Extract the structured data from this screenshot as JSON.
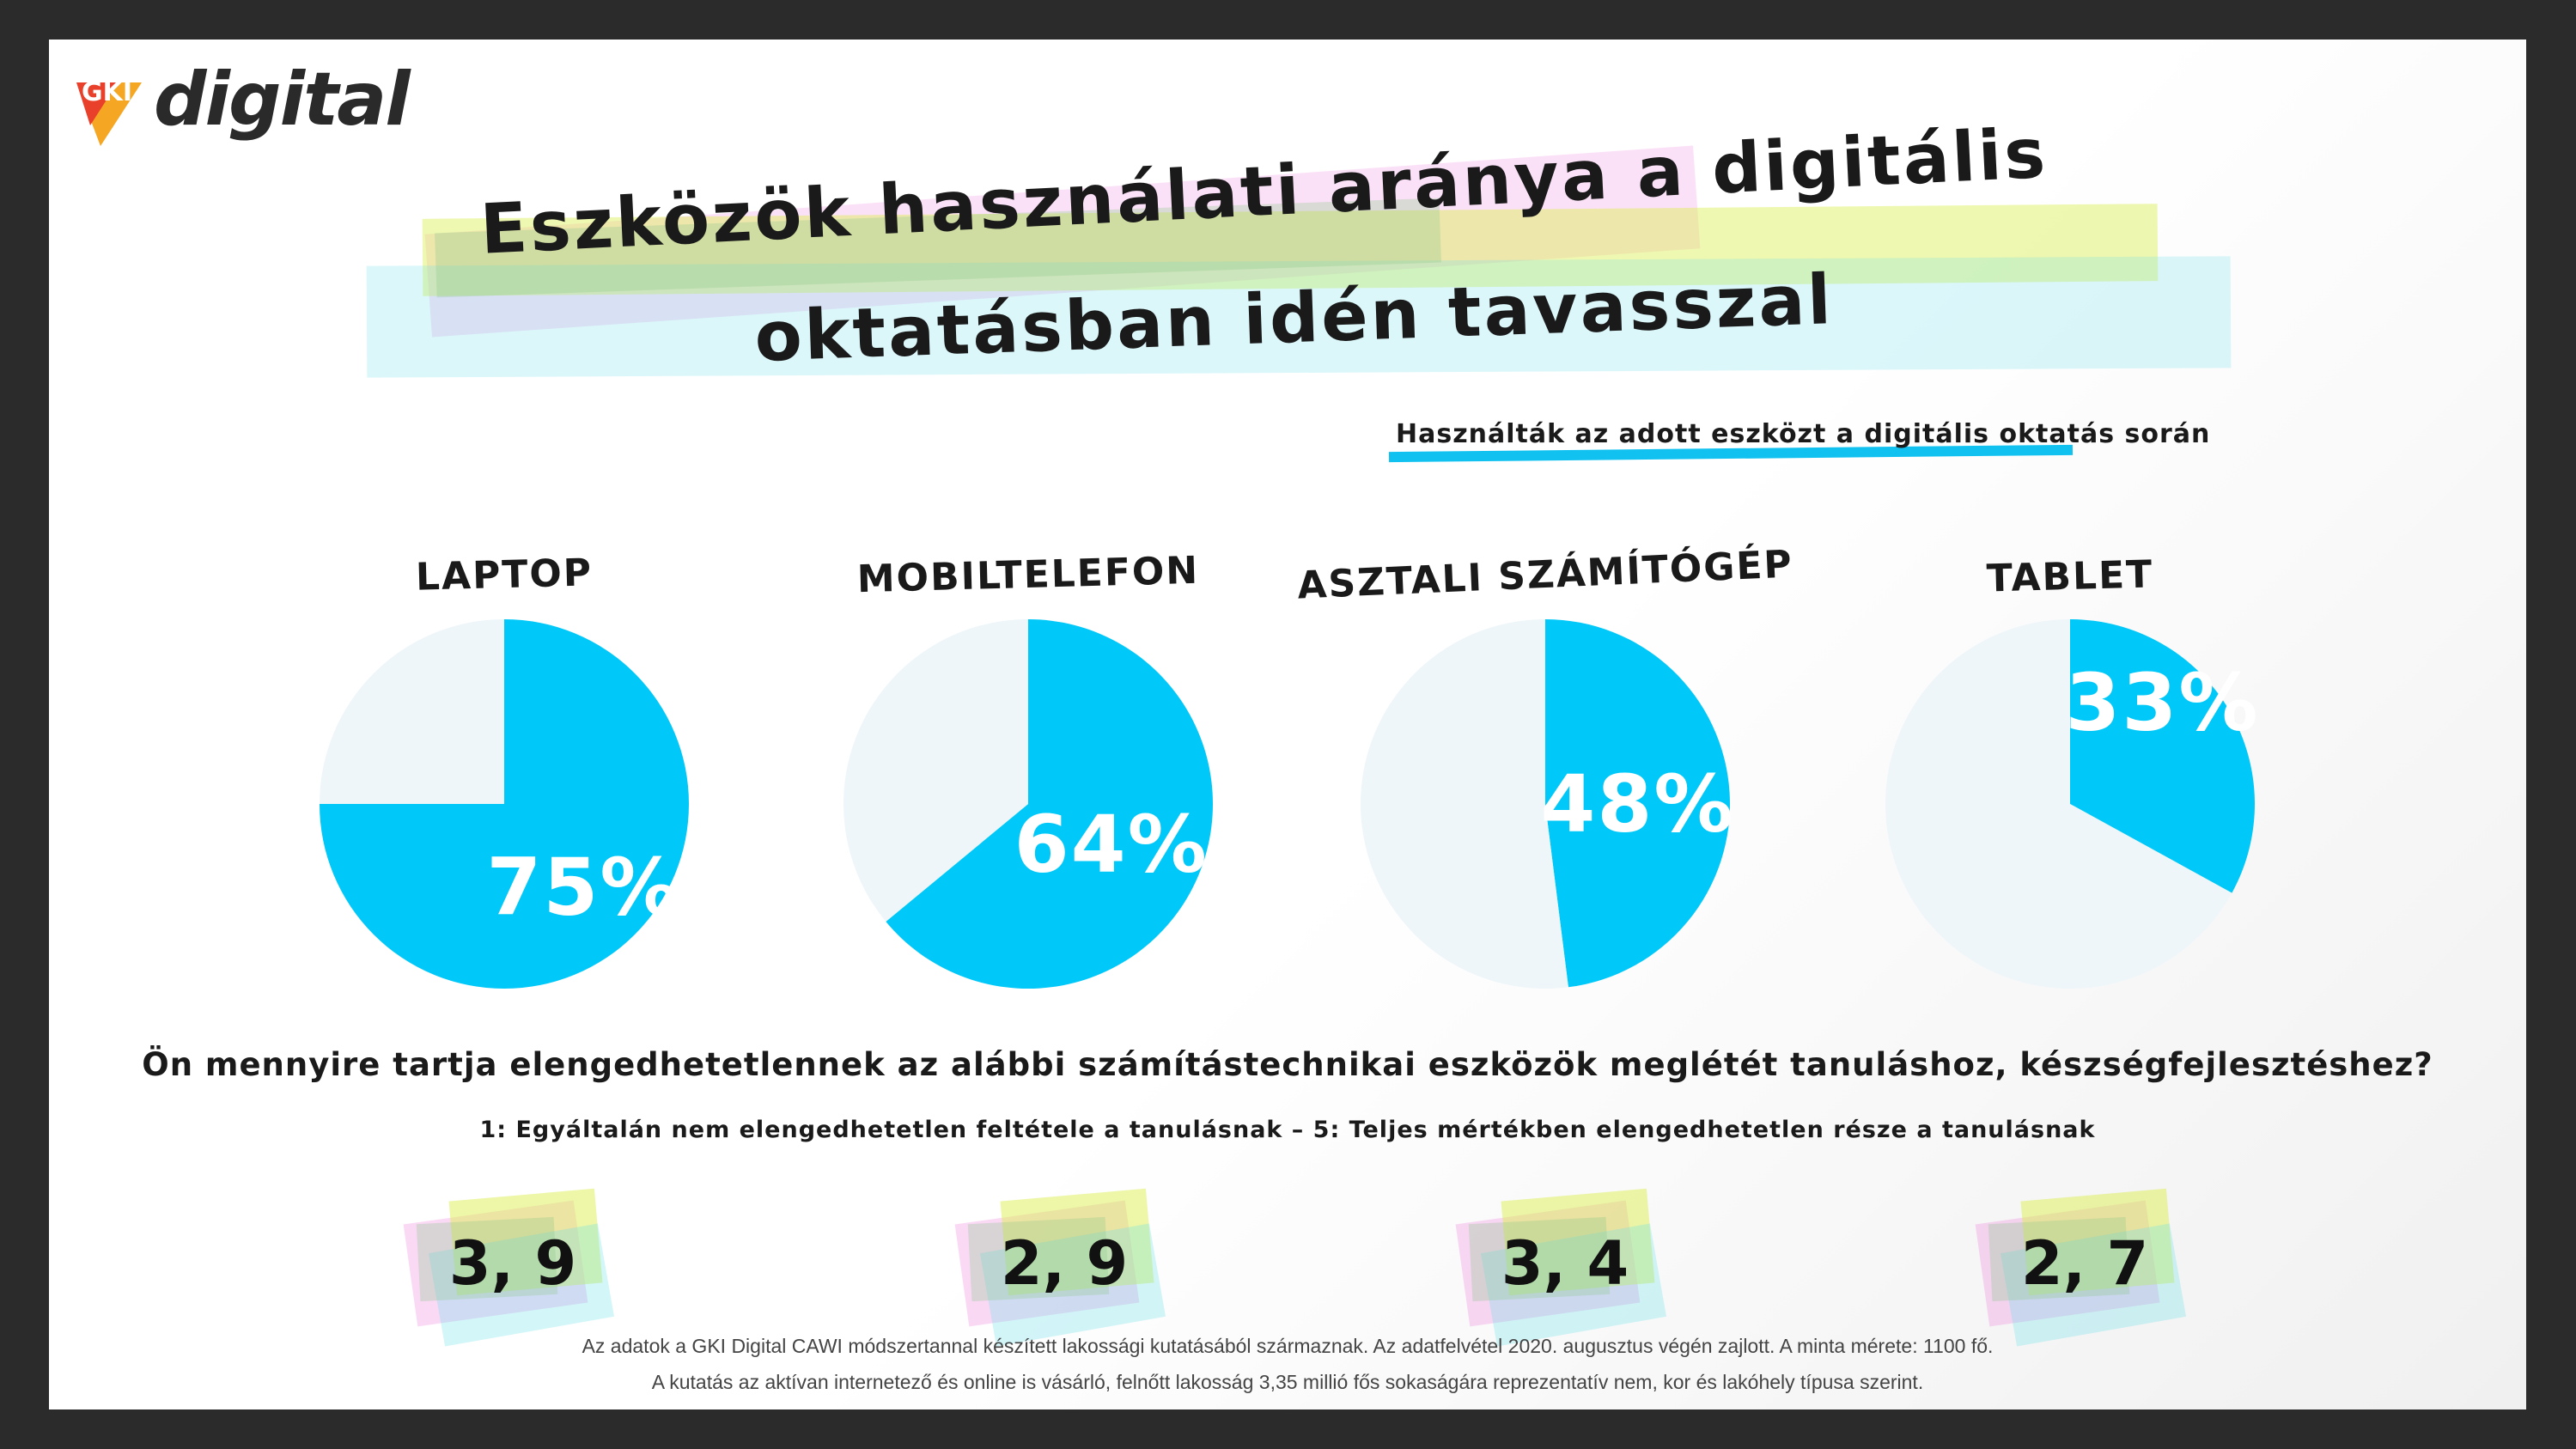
{
  "logo": {
    "prefix": "GKI",
    "text": "digital"
  },
  "title": {
    "line1": "Eszközök használati aránya a digitális",
    "line2": "oktatásban idén tavasszal"
  },
  "subtitle": "Használták az adott eszközt a digitális oktatás során",
  "colors": {
    "accent": "#00c8f8",
    "remainder": "#eef6fa"
  },
  "chart_data": [
    {
      "type": "pie",
      "title": "Laptop",
      "slices": [
        {
          "value": 75,
          "label": "75%"
        },
        {
          "value": 25,
          "label": ""
        }
      ]
    },
    {
      "type": "pie",
      "title": "Mobiltelefon",
      "slices": [
        {
          "value": 64,
          "label": "64%"
        },
        {
          "value": 36,
          "label": ""
        }
      ]
    },
    {
      "type": "pie",
      "title": "Asztali számítógép",
      "slices": [
        {
          "value": 48,
          "label": "48%"
        },
        {
          "value": 52,
          "label": ""
        }
      ]
    },
    {
      "type": "pie",
      "title": "Tablet",
      "slices": [
        {
          "value": 33,
          "label": "33%"
        },
        {
          "value": 67,
          "label": ""
        }
      ]
    }
  ],
  "question": "Ön mennyire tartja elengedhetetlennek az alábbi számítástechnikai eszközök meglétét tanuláshoz, készségfejlesztéshez?",
  "scale": "1: Egyáltalán nem elengedhetetlen feltétele a tanulásnak – 5: Teljes mértékben elengedhetetlen része a tanulásnak",
  "scores": [
    "3, 9",
    "2, 9",
    "3, 4",
    "2, 7"
  ],
  "footnotes": [
    "Az adatok a GKI Digital CAWI módszertannal készített lakossági kutatásából származnak. Az adatfelvétel 2020. augusztus végén zajlott. A minta mérete: 1100 fő.",
    "A kutatás az aktívan internetező és online is vásárló, felnőtt lakosság 3,35 millió fős sokaságára reprezentatív nem, kor és lakóhely típusa szerint."
  ]
}
